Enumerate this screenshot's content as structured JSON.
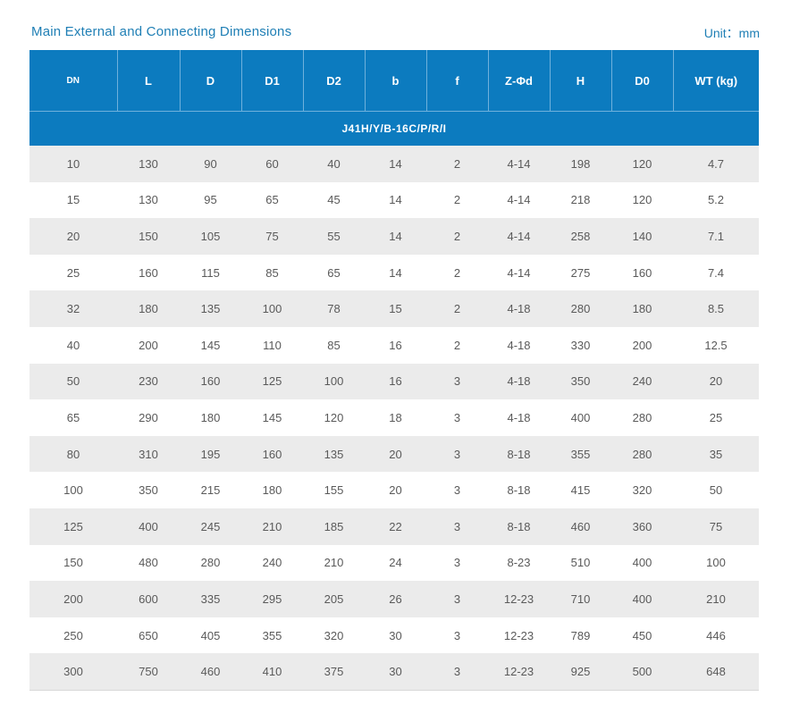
{
  "header": {
    "title": "Main External and Connecting Dimensions",
    "unit": "Unit：mm"
  },
  "table": {
    "columns": [
      "DN",
      "L",
      "D",
      "D1",
      "D2",
      "b",
      "f",
      "Z-Φd",
      "H",
      "D0",
      "WT (kg)"
    ],
    "model": "J41H/Y/B-16C/P/R/I",
    "rows": [
      [
        "10",
        "130",
        "90",
        "60",
        "40",
        "14",
        "2",
        "4-14",
        "198",
        "120",
        "4.7"
      ],
      [
        "15",
        "130",
        "95",
        "65",
        "45",
        "14",
        "2",
        "4-14",
        "218",
        "120",
        "5.2"
      ],
      [
        "20",
        "150",
        "105",
        "75",
        "55",
        "14",
        "2",
        "4-14",
        "258",
        "140",
        "7.1"
      ],
      [
        "25",
        "160",
        "115",
        "85",
        "65",
        "14",
        "2",
        "4-14",
        "275",
        "160",
        "7.4"
      ],
      [
        "32",
        "180",
        "135",
        "100",
        "78",
        "15",
        "2",
        "4-18",
        "280",
        "180",
        "8.5"
      ],
      [
        "40",
        "200",
        "145",
        "110",
        "85",
        "16",
        "2",
        "4-18",
        "330",
        "200",
        "12.5"
      ],
      [
        "50",
        "230",
        "160",
        "125",
        "100",
        "16",
        "3",
        "4-18",
        "350",
        "240",
        "20"
      ],
      [
        "65",
        "290",
        "180",
        "145",
        "120",
        "18",
        "3",
        "4-18",
        "400",
        "280",
        "25"
      ],
      [
        "80",
        "310",
        "195",
        "160",
        "135",
        "20",
        "3",
        "8-18",
        "355",
        "280",
        "35"
      ],
      [
        "100",
        "350",
        "215",
        "180",
        "155",
        "20",
        "3",
        "8-18",
        "415",
        "320",
        "50"
      ],
      [
        "125",
        "400",
        "245",
        "210",
        "185",
        "22",
        "3",
        "8-18",
        "460",
        "360",
        "75"
      ],
      [
        "150",
        "480",
        "280",
        "240",
        "210",
        "24",
        "3",
        "8-23",
        "510",
        "400",
        "100"
      ],
      [
        "200",
        "600",
        "335",
        "295",
        "205",
        "26",
        "3",
        "12-23",
        "710",
        "400",
        "210"
      ],
      [
        "250",
        "650",
        "405",
        "355",
        "320",
        "30",
        "3",
        "12-23",
        "789",
        "450",
        "446"
      ],
      [
        "300",
        "750",
        "460",
        "410",
        "375",
        "30",
        "3",
        "12-23",
        "925",
        "500",
        "648"
      ]
    ]
  },
  "colors": {
    "header_bg": "#0c7bbf",
    "title_text": "#1f7fb5",
    "stripe": "#ebebeb"
  }
}
